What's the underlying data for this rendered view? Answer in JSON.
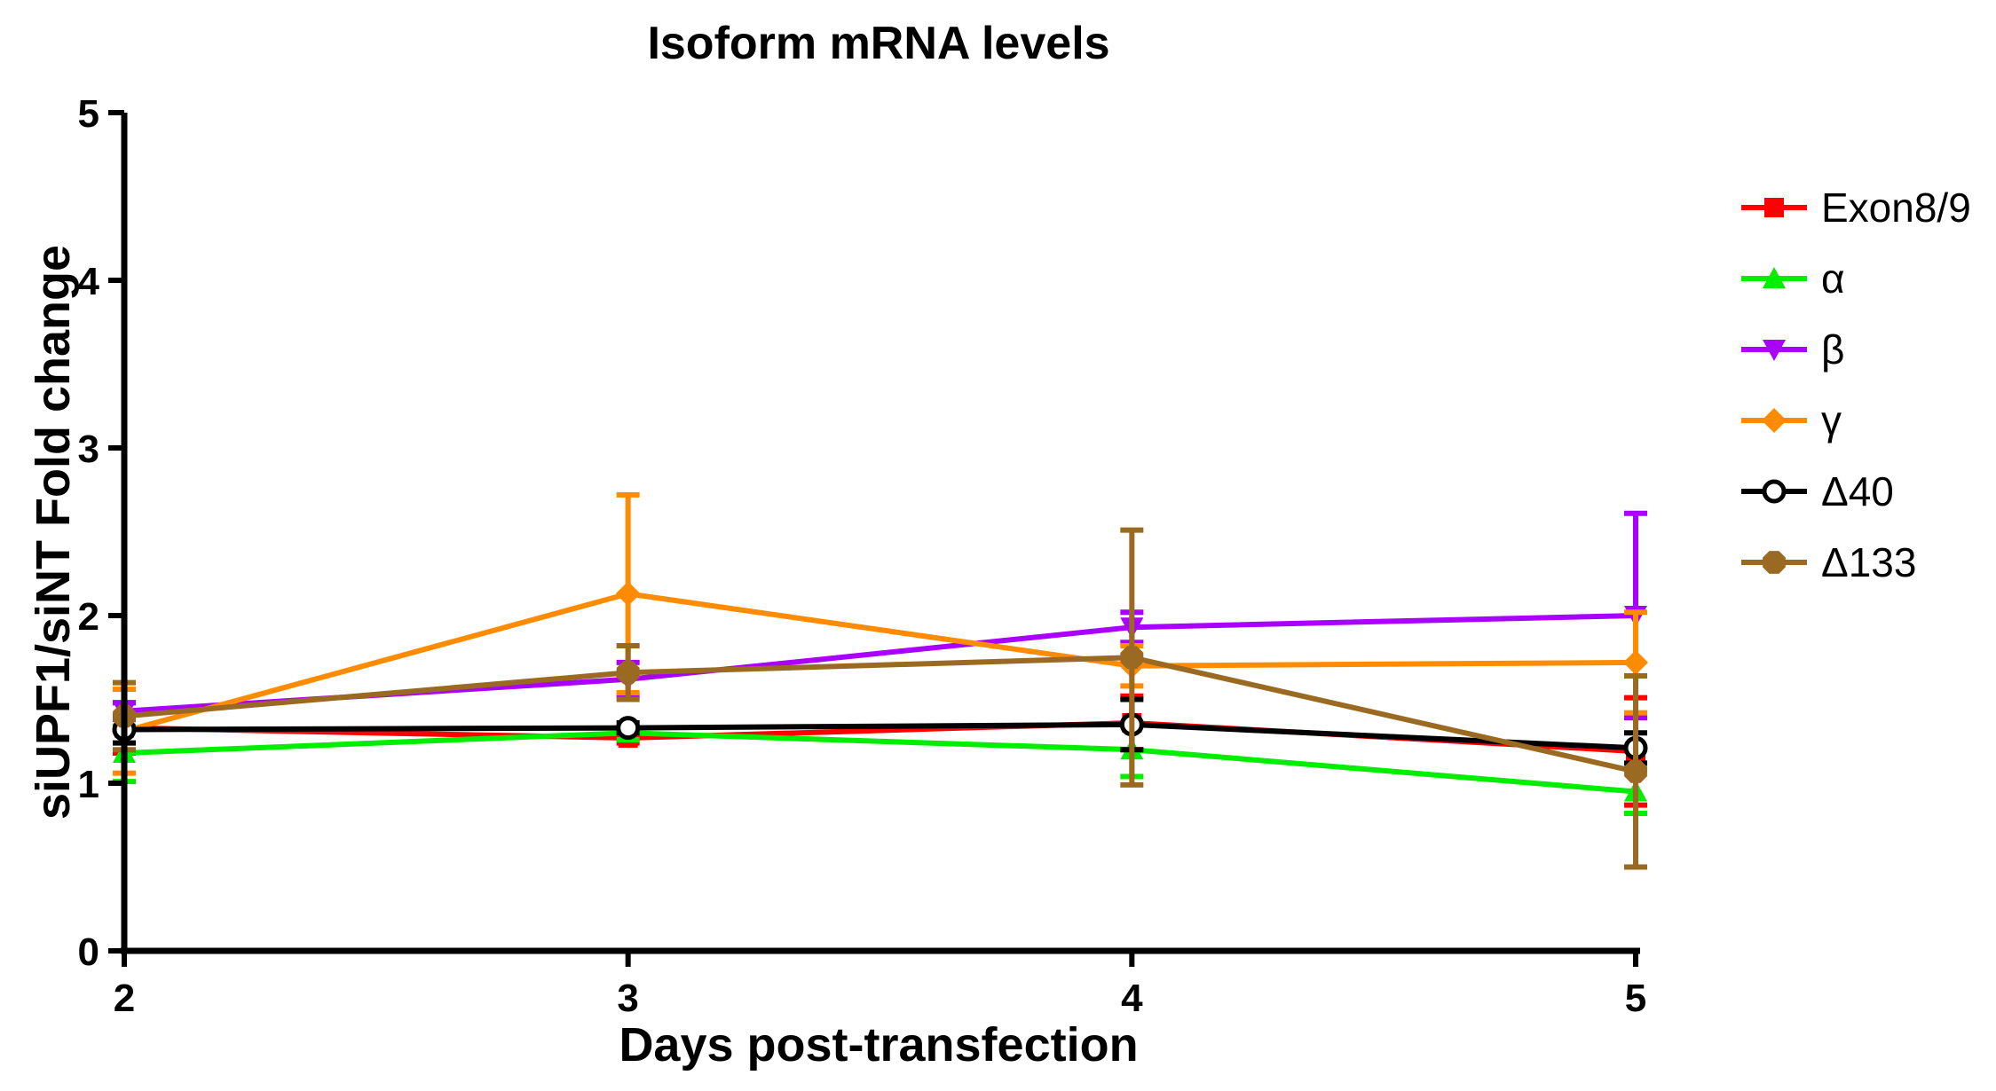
{
  "chart_data": {
    "type": "line",
    "title": "Isoform mRNA levels",
    "xlabel": "Days post-transfection",
    "ylabel": "siUPF1/siNT Fold change",
    "x": [
      2,
      3,
      4,
      5
    ],
    "xlim": [
      2,
      5
    ],
    "ylim": [
      0,
      5
    ],
    "xticks": [
      "2",
      "3",
      "4",
      "5"
    ],
    "yticks": [
      "0",
      "1",
      "2",
      "3",
      "4",
      "5"
    ],
    "grid": false,
    "legend_position": "right",
    "series": [
      {
        "name": "Exon8/9",
        "color": "#ff0000",
        "marker": "square",
        "values": [
          1.33,
          1.27,
          1.36,
          1.19
        ],
        "err_hi": [
          1.48,
          1.3,
          1.52,
          1.51
        ],
        "err_lo": [
          1.18,
          1.24,
          1.2,
          0.87
        ]
      },
      {
        "name": "α",
        "color": "#00ee00",
        "marker": "triangle-up",
        "values": [
          1.18,
          1.3,
          1.2,
          0.95
        ],
        "err_hi": [
          1.34,
          1.34,
          1.36,
          1.08
        ],
        "err_lo": [
          1.01,
          1.26,
          1.04,
          0.82
        ]
      },
      {
        "name": "β",
        "color": "#aa00ff",
        "marker": "triangle-down",
        "values": [
          1.43,
          1.62,
          1.93,
          2.0
        ],
        "err_hi": [
          1.48,
          1.72,
          2.02,
          2.61
        ],
        "err_lo": [
          1.38,
          1.52,
          1.84,
          1.39
        ]
      },
      {
        "name": "γ",
        "color": "#ff8c00",
        "marker": "diamond",
        "values": [
          1.31,
          2.13,
          1.7,
          1.72
        ],
        "err_hi": [
          1.56,
          2.72,
          1.82,
          2.02
        ],
        "err_lo": [
          1.06,
          1.54,
          1.58,
          1.42
        ]
      },
      {
        "name": "Δ40",
        "color": "#000000",
        "marker": "circle-open",
        "values": [
          1.32,
          1.33,
          1.35,
          1.21
        ],
        "err_hi": [
          1.4,
          1.36,
          1.5,
          1.3
        ],
        "err_lo": [
          1.24,
          1.3,
          1.2,
          1.12
        ]
      },
      {
        "name": "Δ133",
        "color": "#9b6a22",
        "marker": "octagon",
        "values": [
          1.4,
          1.66,
          1.75,
          1.07
        ],
        "err_hi": [
          1.6,
          1.82,
          2.51,
          1.64
        ],
        "err_lo": [
          1.2,
          1.5,
          0.99,
          0.5
        ]
      }
    ]
  }
}
